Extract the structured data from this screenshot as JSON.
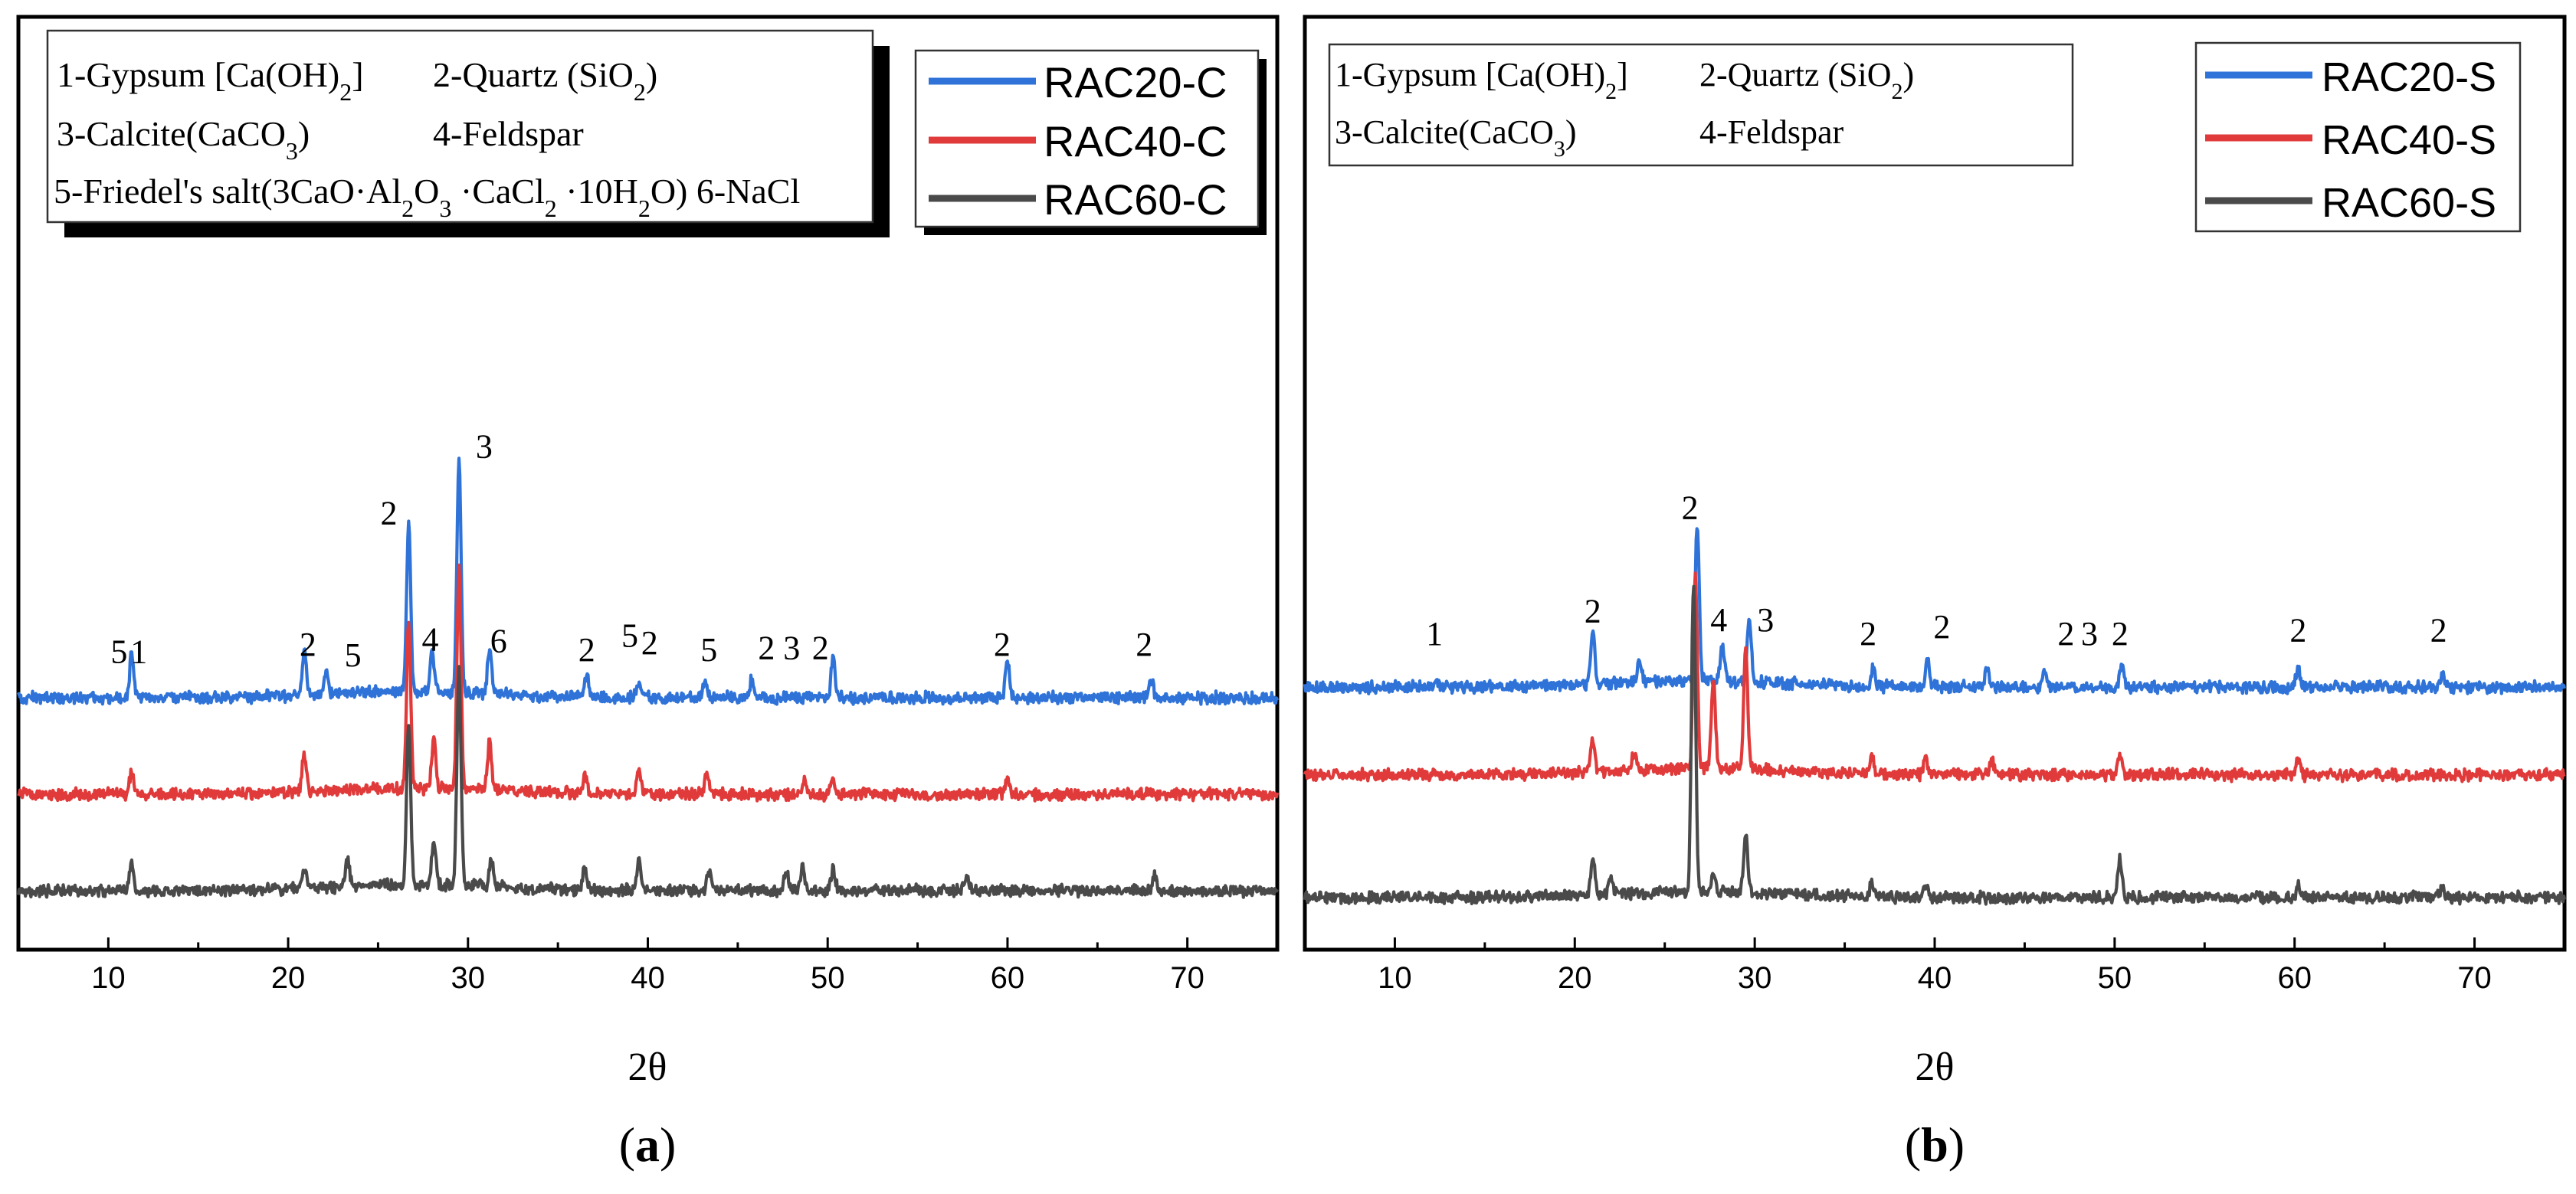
{
  "chart_data": [
    {
      "type": "line",
      "panel_label": "a",
      "xlabel": "2θ",
      "ylabel": "",
      "xlim": [
        5,
        75
      ],
      "xticks": [
        10,
        20,
        30,
        40,
        50,
        60,
        70
      ],
      "legend": {
        "position": "top-right",
        "entries": [
          {
            "name": "RAC20-C",
            "color": "#2f73d8"
          },
          {
            "name": "RAC40-C",
            "color": "#e03a3a"
          },
          {
            "name": "RAC60-C",
            "color": "#4a4a4a"
          }
        ]
      },
      "phase_key": [
        "1-Gypsum [Ca(OH)2]",
        "2-Quartz (SiO2)",
        "3-Calcite(CaCO3)",
        "4-Feldspar",
        "5-Friedel's salt(3CaO·Al2O3 ·CaCl2 ·10H2O) 6-NaCl"
      ],
      "series": [
        {
          "name": "RAC20-C",
          "color": "#2f73d8",
          "baseline": 11,
          "peaks": [
            [
              11.3,
              2.5
            ],
            [
              20.9,
              2.5
            ],
            [
              22.1,
              1.2
            ],
            [
              26.7,
              9.5
            ],
            [
              28.0,
              2.5
            ],
            [
              29.5,
              13.5
            ],
            [
              31.2,
              2.6
            ],
            [
              36.6,
              1.3
            ],
            [
              39.5,
              1.0
            ],
            [
              43.2,
              1.0
            ],
            [
              45.8,
              1.1
            ],
            [
              50.3,
              2.2
            ],
            [
              60.0,
              2.1
            ],
            [
              68.0,
              1.0
            ]
          ]
        },
        {
          "name": "RAC40-C",
          "color": "#e03a3a",
          "baseline": 5.5,
          "peaks": [
            [
              11.3,
              1.2
            ],
            [
              20.9,
              2.2
            ],
            [
              26.7,
              9.4
            ],
            [
              28.1,
              2.8
            ],
            [
              29.5,
              12.6
            ],
            [
              31.2,
              2.8
            ],
            [
              36.5,
              1.0
            ],
            [
              39.5,
              1.5
            ],
            [
              43.3,
              1.2
            ],
            [
              48.7,
              1.0
            ],
            [
              50.3,
              0.8
            ],
            [
              60.0,
              0.8
            ]
          ]
        },
        {
          "name": "RAC60-C",
          "color": "#4a4a4a",
          "baseline": 0,
          "peaks": [
            [
              11.3,
              1.6
            ],
            [
              20.9,
              1.2
            ],
            [
              23.3,
              1.5
            ],
            [
              26.7,
              9.2
            ],
            [
              28.1,
              2.4
            ],
            [
              29.5,
              12.3
            ],
            [
              31.3,
              1.6
            ],
            [
              36.5,
              1.3
            ],
            [
              39.5,
              1.6
            ],
            [
              43.4,
              1.2
            ],
            [
              47.7,
              1.2
            ],
            [
              48.6,
              1.4
            ],
            [
              50.3,
              1.2
            ],
            [
              57.7,
              0.8
            ],
            [
              68.2,
              0.9
            ]
          ]
        }
      ],
      "annotations": [
        {
          "text": "5",
          "x": 10.6,
          "y": 13.0
        },
        {
          "text": "1",
          "x": 11.7,
          "y": 13.0
        },
        {
          "text": "2",
          "x": 21.1,
          "y": 13.4
        },
        {
          "text": "5",
          "x": 23.6,
          "y": 12.8
        },
        {
          "text": "2",
          "x": 25.6,
          "y": 20.9
        },
        {
          "text": "4",
          "x": 27.9,
          "y": 13.7
        },
        {
          "text": "3",
          "x": 30.9,
          "y": 24.7
        },
        {
          "text": "6",
          "x": 31.7,
          "y": 13.6
        },
        {
          "text": "2",
          "x": 36.6,
          "y": 13.1
        },
        {
          "text": "5",
          "x": 39.0,
          "y": 13.9
        },
        {
          "text": "2",
          "x": 40.1,
          "y": 13.5
        },
        {
          "text": "5",
          "x": 43.4,
          "y": 13.1
        },
        {
          "text": "2",
          "x": 46.6,
          "y": 13.2
        },
        {
          "text": "3",
          "x": 48.0,
          "y": 13.2
        },
        {
          "text": "2",
          "x": 49.6,
          "y": 13.2
        },
        {
          "text": "2",
          "x": 59.7,
          "y": 13.4
        },
        {
          "text": "2",
          "x": 67.6,
          "y": 13.4
        }
      ]
    },
    {
      "type": "line",
      "panel_label": "b",
      "xlabel": "2θ",
      "ylabel": "",
      "xlim": [
        5,
        75
      ],
      "xticks": [
        10,
        20,
        30,
        40,
        50,
        60,
        70
      ],
      "legend": {
        "position": "top-right",
        "entries": [
          {
            "name": "RAC20-S",
            "color": "#2f73d8"
          },
          {
            "name": "RAC40-S",
            "color": "#e03a3a"
          },
          {
            "name": "RAC60-S",
            "color": "#4a4a4a"
          }
        ]
      },
      "phase_key": [
        "1-Gypsum [Ca(OH)2]",
        "2-Quartz (SiO2)",
        "3-Calcite(CaCO3)",
        "4-Feldspar"
      ],
      "series": [
        {
          "name": "RAC20-S",
          "color": "#2f73d8",
          "baseline": 12,
          "peaks": [
            [
              12.3,
              0.5
            ],
            [
              21.0,
              3.0
            ],
            [
              23.6,
              1.2
            ],
            [
              26.8,
              8.9
            ],
            [
              28.2,
              2.0
            ],
            [
              29.7,
              3.7
            ],
            [
              36.6,
              1.0
            ],
            [
              39.6,
              1.6
            ],
            [
              42.9,
              1.0
            ],
            [
              46.1,
              0.8
            ],
            [
              50.4,
              1.2
            ],
            [
              60.2,
              1.1
            ],
            [
              68.2,
              0.8
            ]
          ]
        },
        {
          "name": "RAC40-S",
          "color": "#e03a3a",
          "baseline": 7,
          "peaks": [
            [
              21.0,
              1.9
            ],
            [
              23.3,
              1.0
            ],
            [
              26.7,
              11.0
            ],
            [
              27.7,
              5.0
            ],
            [
              29.5,
              6.8
            ],
            [
              36.5,
              1.0
            ],
            [
              39.5,
              1.0
            ],
            [
              43.2,
              0.8
            ],
            [
              50.3,
              1.1
            ],
            [
              60.2,
              0.8
            ]
          ]
        },
        {
          "name": "RAC60-S",
          "color": "#4a4a4a",
          "baseline": 0,
          "peaks": [
            [
              21.0,
              2.0
            ],
            [
              22.0,
              1.0
            ],
            [
              26.6,
              17.6
            ],
            [
              27.7,
              1.1
            ],
            [
              29.5,
              3.3
            ],
            [
              36.5,
              0.8
            ],
            [
              39.5,
              0.8
            ],
            [
              50.3,
              2.2
            ],
            [
              60.2,
              0.7
            ],
            [
              68.2,
              0.7
            ]
          ]
        }
      ],
      "annotations": [
        {
          "text": "1",
          "x": 12.2,
          "y": 14.4
        },
        {
          "text": "2",
          "x": 21.0,
          "y": 15.7
        },
        {
          "text": "2",
          "x": 26.4,
          "y": 21.6
        },
        {
          "text": "4",
          "x": 28.0,
          "y": 15.2
        },
        {
          "text": "3",
          "x": 30.6,
          "y": 15.2
        },
        {
          "text": "2",
          "x": 36.3,
          "y": 14.4
        },
        {
          "text": "2",
          "x": 40.4,
          "y": 14.8
        },
        {
          "text": "2",
          "x": 47.3,
          "y": 14.4
        },
        {
          "text": "3",
          "x": 48.6,
          "y": 14.4
        },
        {
          "text": "2",
          "x": 50.3,
          "y": 14.4
        },
        {
          "text": "2",
          "x": 60.2,
          "y": 14.6
        },
        {
          "text": "2",
          "x": 68.0,
          "y": 14.6
        }
      ]
    }
  ]
}
